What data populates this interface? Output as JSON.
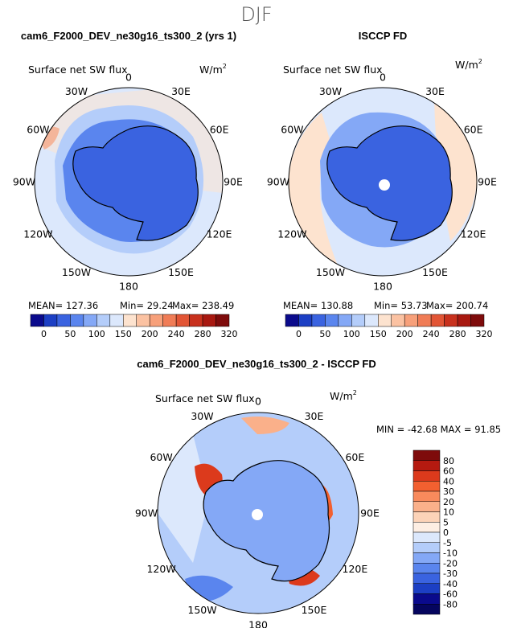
{
  "figure": {
    "season": "DJF",
    "panels": [
      {
        "id": "model",
        "header": "cam6_F2000_DEV_ne30g16_ts300_2 (yrs 1)",
        "variable": "Surface net SW flux",
        "units": "W/m",
        "units_sup": "2",
        "stats": {
          "mean": "MEAN= 127.36",
          "min": "Min= 29.24",
          "max": "Max= 238.49"
        }
      },
      {
        "id": "obs",
        "header": "ISCCP FD",
        "variable": "Surface net SW flux",
        "units": "W/m",
        "units_sup": "2",
        "stats": {
          "mean": "MEAN= 130.88",
          "min": "Min= 53.73",
          "max": "Max= 200.74"
        }
      },
      {
        "id": "diff",
        "header": "cam6_F2000_DEV_ne30g16_ts300_2 - ISCCP FD",
        "variable": "Surface net SW flux",
        "units": "W/m",
        "units_sup": "2",
        "stats": {
          "minmax": "MIN = -42.68  MAX =  91.85"
        }
      }
    ],
    "longitude_labels": [
      "0",
      "30E",
      "60E",
      "90E",
      "120E",
      "150E",
      "180",
      "150W",
      "120W",
      "90W",
      "60W",
      "30W"
    ]
  },
  "colorbars": {
    "absolute": {
      "labels": [
        "0",
        "50",
        "100",
        "150",
        "200",
        "240",
        "280",
        "320"
      ],
      "colors": [
        "#0a0a8c",
        "#1c3fc4",
        "#3a63e0",
        "#5a85ee",
        "#84a8f6",
        "#b4cdfa",
        "#dce8fc",
        "#fde3cf",
        "#fbc2a2",
        "#f7a07a",
        "#f07c56",
        "#e25535",
        "#c8311d",
        "#a81810",
        "#7e0b0b"
      ]
    },
    "difference": {
      "labels": [
        "80",
        "60",
        "40",
        "30",
        "20",
        "10",
        "5",
        "0",
        "-5",
        "-10",
        "-20",
        "-30",
        "-40",
        "-60",
        "-80"
      ],
      "colors": [
        "#7e0b0b",
        "#b51a10",
        "#dc3a1c",
        "#f26030",
        "#f88a5c",
        "#fab08a",
        "#fcd3b8",
        "#fdeee3",
        "#dce8fc",
        "#b4cdfa",
        "#84a8f6",
        "#5a85ee",
        "#3a63e0",
        "#1c3fc4",
        "#0a0a8c",
        "#05055e"
      ]
    }
  },
  "chart_data": [
    {
      "type": "heatmap",
      "title": "Surface net SW flux",
      "subtitle": "cam6_F2000_DEV_ne30g16_ts300_2 (yrs 1)",
      "projection": "south polar stereographic",
      "units": "W/m2",
      "mean": 127.36,
      "min": 29.24,
      "max": 238.49,
      "levels": [
        0,
        25,
        50,
        75,
        100,
        125,
        150,
        175,
        200,
        220,
        240,
        260,
        280,
        300,
        320
      ]
    },
    {
      "type": "heatmap",
      "title": "Surface net SW flux",
      "subtitle": "ISCCP FD",
      "projection": "south polar stereographic",
      "units": "W/m2",
      "mean": 130.88,
      "min": 53.73,
      "max": 200.74,
      "levels": [
        0,
        25,
        50,
        75,
        100,
        125,
        150,
        175,
        200,
        220,
        240,
        260,
        280,
        300,
        320
      ]
    },
    {
      "type": "heatmap",
      "title": "Surface net SW flux",
      "subtitle": "cam6_F2000_DEV_ne30g16_ts300_2 - ISCCP FD",
      "projection": "south polar stereographic",
      "units": "W/m2",
      "min": -42.68,
      "max": 91.85,
      "levels": [
        -80,
        -60,
        -40,
        -30,
        -20,
        -10,
        -5,
        0,
        5,
        10,
        20,
        30,
        40,
        60,
        80
      ]
    }
  ]
}
